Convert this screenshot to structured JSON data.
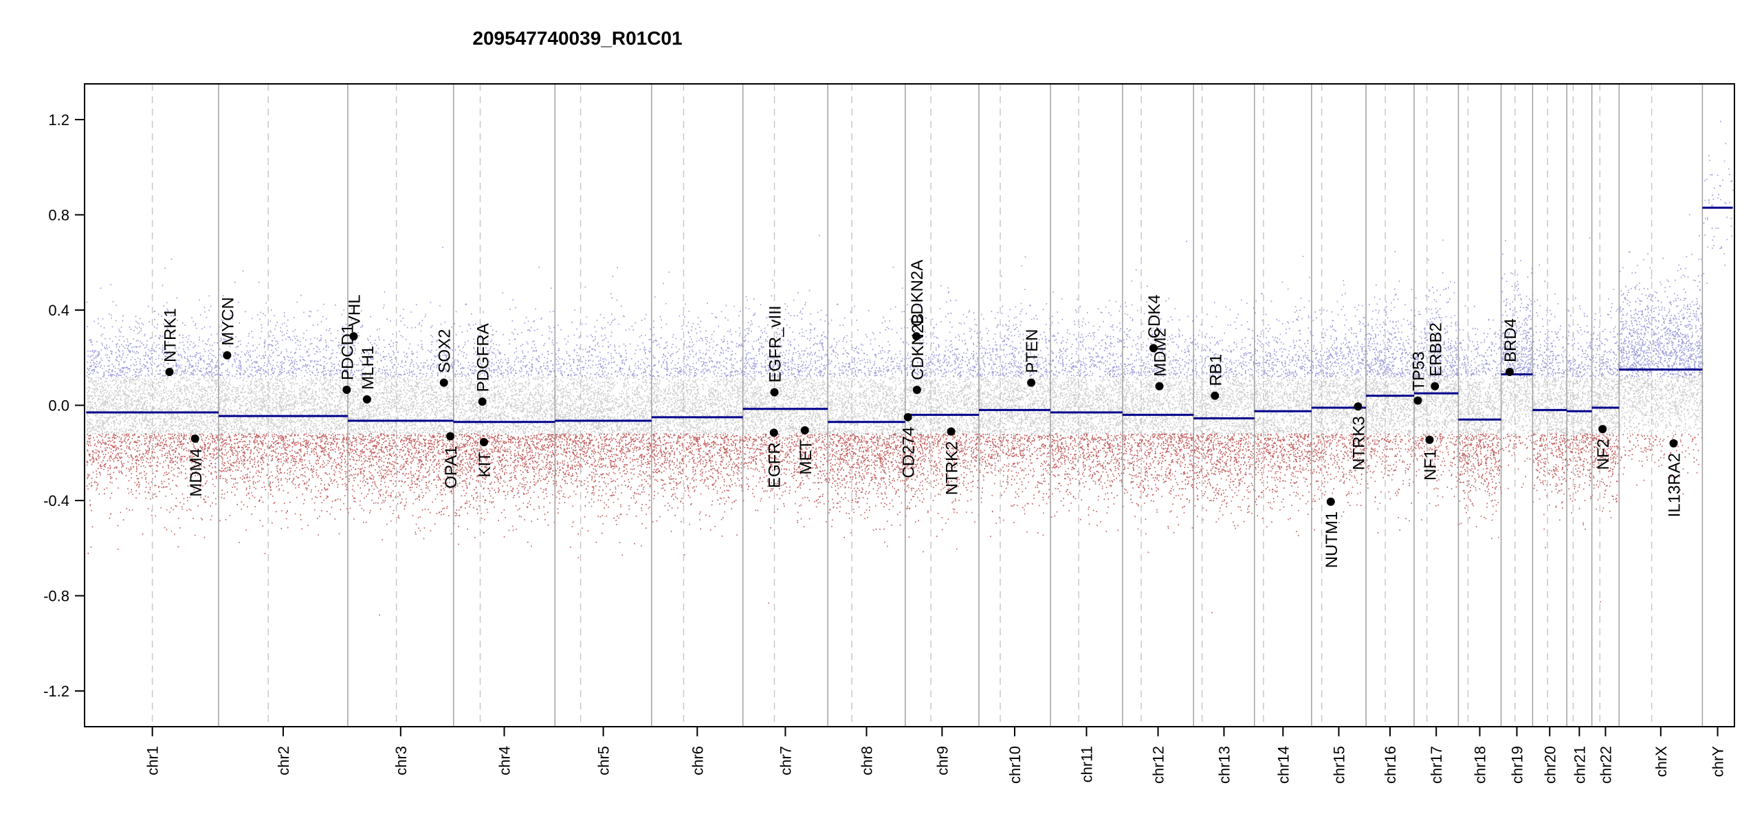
{
  "chart_data": {
    "type": "scatter",
    "title": "209547740039_R01C01",
    "xlabel": "",
    "ylabel": "",
    "ylim": [
      -1.35,
      1.35
    ],
    "y_ticks": [
      -1.2,
      -0.8,
      -0.4,
      0.0,
      0.4,
      0.8,
      1.2
    ],
    "y_tick_labels": [
      "-1.2",
      "-0.8",
      "-0.4",
      "0.0",
      "0.4",
      "0.8",
      "1.2"
    ],
    "grid": false,
    "colors": {
      "segment": "#00008b",
      "gain": "#7f7fd0",
      "loss": "#b03030",
      "neutral": "#bdbdbd",
      "boundary": "#a0a0a0",
      "centromere": "#c8c8c8"
    },
    "chromosomes": [
      {
        "name": "chr1",
        "start": 0,
        "end": 248,
        "centromere": 124,
        "segment": -0.03
      },
      {
        "name": "chr2",
        "start": 248,
        "end": 490,
        "centromere": 341,
        "segment": -0.045
      },
      {
        "name": "chr3",
        "start": 490,
        "end": 688,
        "centromere": 581,
        "segment": -0.065
      },
      {
        "name": "chr4",
        "start": 688,
        "end": 878,
        "centromere": 738,
        "segment": -0.07
      },
      {
        "name": "chr5",
        "start": 878,
        "end": 1059,
        "centromere": 926,
        "segment": -0.065
      },
      {
        "name": "chr6",
        "start": 1059,
        "end": 1230,
        "centromere": 1119,
        "segment": -0.05
      },
      {
        "name": "chr7",
        "start": 1230,
        "end": 1389,
        "centromere": 1289,
        "segment": -0.015
      },
      {
        "name": "chr8",
        "start": 1389,
        "end": 1534,
        "centromere": 1434,
        "segment": -0.07
      },
      {
        "name": "chr9",
        "start": 1534,
        "end": 1672,
        "centromere": 1582,
        "segment": -0.04
      },
      {
        "name": "chr10",
        "start": 1672,
        "end": 1806,
        "centromere": 1712,
        "segment": -0.02
      },
      {
        "name": "chr11",
        "start": 1806,
        "end": 1941,
        "centromere": 1859,
        "segment": -0.03
      },
      {
        "name": "chr12",
        "start": 1941,
        "end": 2074,
        "centromere": 1976,
        "segment": -0.04
      },
      {
        "name": "chr13",
        "start": 2074,
        "end": 2188,
        "centromere": 2090,
        "segment": -0.055
      },
      {
        "name": "chr14",
        "start": 2188,
        "end": 2295,
        "centromere": 2205,
        "segment": -0.025
      },
      {
        "name": "chr15",
        "start": 2295,
        "end": 2397,
        "centromere": 2314,
        "segment": -0.01
      },
      {
        "name": "chr16",
        "start": 2397,
        "end": 2487,
        "centromere": 2433,
        "segment": 0.04
      },
      {
        "name": "chr17",
        "start": 2487,
        "end": 2570,
        "centromere": 2511,
        "segment": 0.05
      },
      {
        "name": "chr18",
        "start": 2570,
        "end": 2650,
        "centromere": 2588,
        "segment": -0.06
      },
      {
        "name": "chr19",
        "start": 2650,
        "end": 2709,
        "centromere": 2676,
        "segment": 0.13
      },
      {
        "name": "chr20",
        "start": 2709,
        "end": 2773,
        "centromere": 2737,
        "segment": -0.02
      },
      {
        "name": "chr21",
        "start": 2773,
        "end": 2820,
        "centromere": 2785,
        "segment": -0.025
      },
      {
        "name": "chr22",
        "start": 2820,
        "end": 2871,
        "centromere": 2835,
        "segment": -0.01
      },
      {
        "name": "chrX",
        "start": 2871,
        "end": 3027,
        "centromere": 2932,
        "segment": 0.15
      },
      {
        "name": "chrY",
        "start": 3027,
        "end": 3084,
        "centromere": null,
        "segment": 0.83
      }
    ],
    "genes": [
      {
        "name": "NTRK1",
        "x": 156,
        "y": 0.14,
        "label_side": "up"
      },
      {
        "name": "MDM4",
        "x": 204,
        "y": -0.14,
        "label_side": "down"
      },
      {
        "name": "MYCN",
        "x": 264,
        "y": 0.21,
        "label_side": "up"
      },
      {
        "name": "PDCD1",
        "x": 488,
        "y": 0.065,
        "label_side": "up"
      },
      {
        "name": "VHL",
        "x": 501,
        "y": 0.29,
        "label_side": "up"
      },
      {
        "name": "MLH1",
        "x": 526,
        "y": 0.025,
        "label_side": "up"
      },
      {
        "name": "SOX2",
        "x": 670,
        "y": 0.095,
        "label_side": "up"
      },
      {
        "name": "OPA1",
        "x": 682,
        "y": -0.13,
        "label_side": "down"
      },
      {
        "name": "PDGFRA",
        "x": 742,
        "y": 0.015,
        "label_side": "up"
      },
      {
        "name": "KIT",
        "x": 745,
        "y": -0.155,
        "label_side": "down"
      },
      {
        "name": "EGFR_vIII",
        "x": 1289,
        "y": 0.055,
        "label_side": "up"
      },
      {
        "name": "EGFR",
        "x": 1288,
        "y": -0.115,
        "label_side": "down"
      },
      {
        "name": "MET",
        "x": 1346,
        "y": -0.105,
        "label_side": "down"
      },
      {
        "name": "CD274",
        "x": 1539,
        "y": -0.05,
        "label_side": "down"
      },
      {
        "name": "CDKN2A",
        "x": 1555,
        "y": 0.29,
        "label_side": "up"
      },
      {
        "name": "CDKN2B",
        "x": 1556,
        "y": 0.065,
        "label_side": "up"
      },
      {
        "name": "NTRK2",
        "x": 1620,
        "y": -0.11,
        "label_side": "down"
      },
      {
        "name": "PTEN",
        "x": 1770,
        "y": 0.095,
        "label_side": "up"
      },
      {
        "name": "CDK4",
        "x": 1999,
        "y": 0.24,
        "label_side": "up"
      },
      {
        "name": "MDM2",
        "x": 2010,
        "y": 0.08,
        "label_side": "up"
      },
      {
        "name": "RB1",
        "x": 2114,
        "y": 0.04,
        "label_side": "up"
      },
      {
        "name": "NUTM1",
        "x": 2331,
        "y": -0.405,
        "label_side": "down"
      },
      {
        "name": "NTRK3",
        "x": 2382,
        "y": -0.005,
        "label_side": "down"
      },
      {
        "name": "TP53",
        "x": 2494,
        "y": 0.02,
        "label_side": "up"
      },
      {
        "name": "ERBB2",
        "x": 2526,
        "y": 0.08,
        "label_side": "up"
      },
      {
        "name": "NF1",
        "x": 2516,
        "y": -0.145,
        "label_side": "down"
      },
      {
        "name": "BRD4",
        "x": 2666,
        "y": 0.14,
        "label_side": "up"
      },
      {
        "name": "NF2",
        "x": 2840,
        "y": -0.1,
        "label_side": "down"
      },
      {
        "name": "IL13RA2",
        "x": 2973,
        "y": -0.16,
        "label_side": "down"
      }
    ]
  }
}
